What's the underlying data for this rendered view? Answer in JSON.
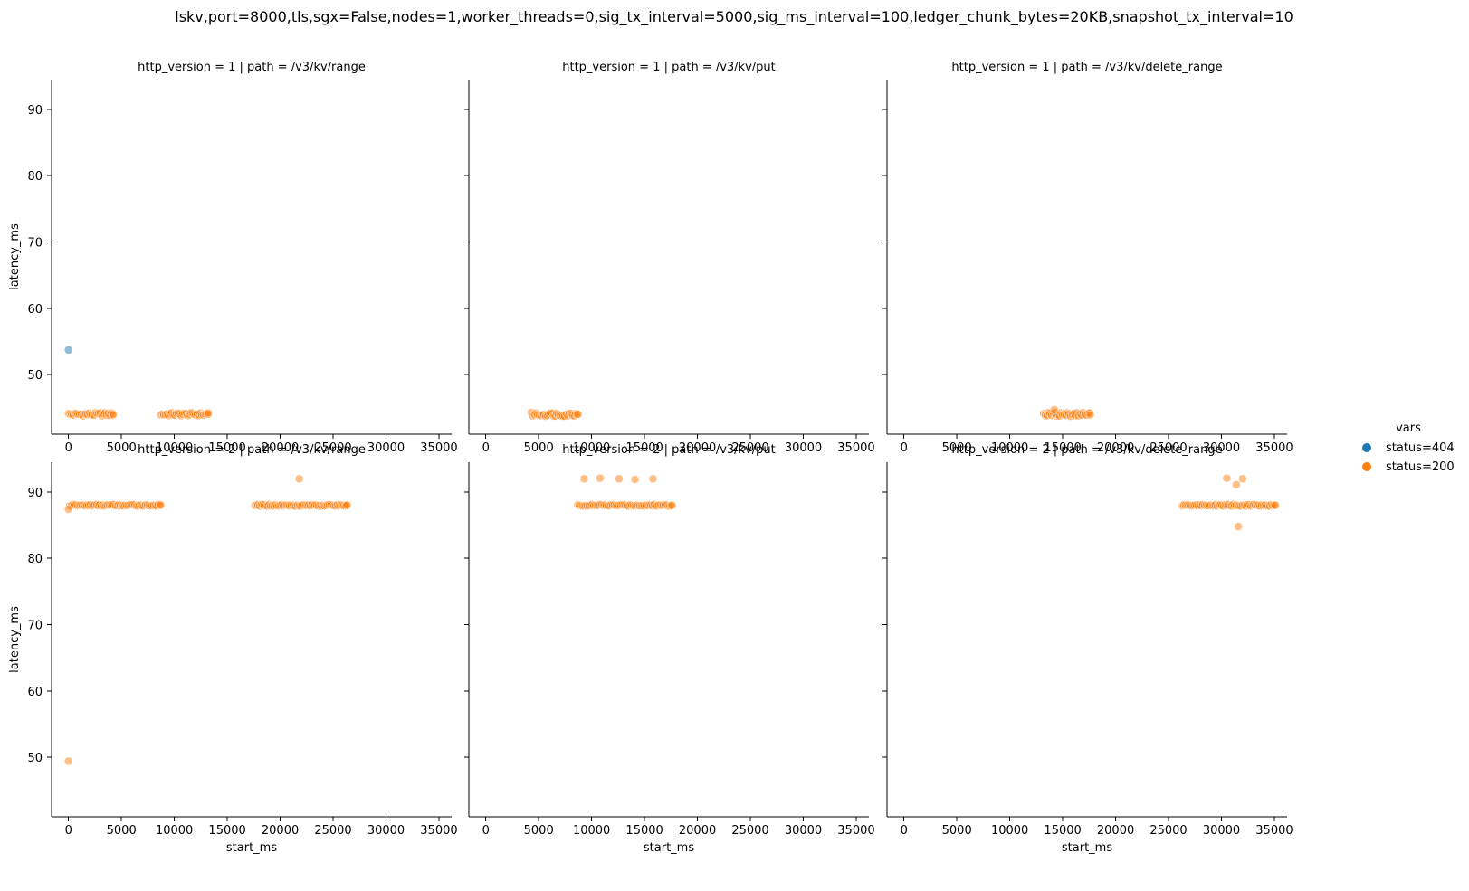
{
  "chart_data": {
    "type": "scatter",
    "title": "lskv,port=8000,tls,sgx=False,nodes=1,worker_threads=0,sig_tx_interval=5000,sig_ms_interval=100,ledger_chunk_bytes=20KB,snapshot_tx_interval=10",
    "xlabel": "start_ms",
    "ylabel": "latency_ms",
    "xlim": [
      -1600,
      36200
    ],
    "ylim": [
      41.0,
      94.5
    ],
    "x_ticks": [
      0,
      5000,
      10000,
      15000,
      20000,
      25000,
      30000,
      35000
    ],
    "y_ticks": [
      50,
      60,
      70,
      80,
      90
    ],
    "grid": false,
    "legend": {
      "title": "vars",
      "placement": "right",
      "entries": [
        {
          "label": "status=404",
          "color": "#1f77b4"
        },
        {
          "label": "status=200",
          "color": "#ff7f0e"
        }
      ]
    },
    "colors": {
      "status=404": "#1f77b4",
      "status=200": "#ff7f0e"
    },
    "panels": [
      {
        "title": "http_version = 1 | path = /v3/kv/range",
        "bands": [
          {
            "series": "status=200",
            "x_start": 0,
            "x_end": 4200,
            "step": 150,
            "y": 44.0,
            "jitter": 0.25
          },
          {
            "series": "status=200",
            "x_start": 8700,
            "x_end": 13200,
            "step": 150,
            "y": 44.0,
            "jitter": 0.25
          }
        ],
        "points": [
          {
            "series": "status=404",
            "x": 0,
            "y": 53.7
          },
          {
            "series": "status=200",
            "x": 4200,
            "y": 44.0
          },
          {
            "series": "status=200",
            "x": 13200,
            "y": 44.2
          }
        ]
      },
      {
        "title": "http_version = 1 | path = /v3/kv/put",
        "bands": [
          {
            "series": "status=200",
            "x_start": 4300,
            "x_end": 8700,
            "step": 150,
            "y": 44.0,
            "jitter": 0.3
          }
        ],
        "points": [
          {
            "series": "status=200",
            "x": 8700,
            "y": 44.0
          }
        ]
      },
      {
        "title": "http_version = 1 | path = /v3/kv/delete_range",
        "bands": [
          {
            "series": "status=200",
            "x_start": 13200,
            "x_end": 17600,
            "step": 150,
            "y": 44.0,
            "jitter": 0.3
          }
        ],
        "points": [
          {
            "series": "status=200",
            "x": 14200,
            "y": 44.7
          },
          {
            "series": "status=200",
            "x": 17600,
            "y": 43.9
          }
        ]
      },
      {
        "title": "http_version = 2 | path = /v3/kv/range",
        "bands": [
          {
            "series": "status=200",
            "x_start": 100,
            "x_end": 8700,
            "step": 150,
            "y": 88.0,
            "jitter": 0.12
          },
          {
            "series": "status=200",
            "x_start": 17600,
            "x_end": 26300,
            "step": 150,
            "y": 88.0,
            "jitter": 0.12
          }
        ],
        "points": [
          {
            "series": "status=200",
            "x": 0,
            "y": 87.4
          },
          {
            "series": "status=200",
            "x": 0,
            "y": 49.4
          },
          {
            "series": "status=200",
            "x": 21800,
            "y": 92.0
          },
          {
            "series": "status=200",
            "x": 8700,
            "y": 88.0
          },
          {
            "series": "status=200",
            "x": 26300,
            "y": 88.0
          }
        ]
      },
      {
        "title": "http_version = 2 | path = /v3/kv/put",
        "bands": [
          {
            "series": "status=200",
            "x_start": 8700,
            "x_end": 17600,
            "step": 150,
            "y": 88.0,
            "jitter": 0.12
          }
        ],
        "points": [
          {
            "series": "status=200",
            "x": 9300,
            "y": 92.0
          },
          {
            "series": "status=200",
            "x": 10800,
            "y": 92.1
          },
          {
            "series": "status=200",
            "x": 12600,
            "y": 92.0
          },
          {
            "series": "status=200",
            "x": 14100,
            "y": 91.9
          },
          {
            "series": "status=200",
            "x": 15800,
            "y": 92.0
          },
          {
            "series": "status=200",
            "x": 17600,
            "y": 88.0
          }
        ]
      },
      {
        "title": "http_version = 2 | path = /v3/kv/delete_range",
        "bands": [
          {
            "series": "status=200",
            "x_start": 26300,
            "x_end": 35100,
            "step": 150,
            "y": 88.0,
            "jitter": 0.12
          }
        ],
        "points": [
          {
            "series": "status=200",
            "x": 30500,
            "y": 92.1
          },
          {
            "series": "status=200",
            "x": 31400,
            "y": 91.1
          },
          {
            "series": "status=200",
            "x": 32000,
            "y": 92.0
          },
          {
            "series": "status=200",
            "x": 31600,
            "y": 84.8
          },
          {
            "series": "status=200",
            "x": 35100,
            "y": 88.0
          }
        ]
      }
    ]
  }
}
